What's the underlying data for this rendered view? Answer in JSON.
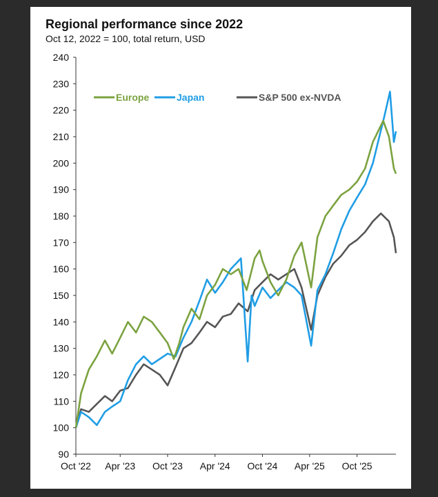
{
  "title": "Regional performance since 2022",
  "subtitle": "Oct 12, 2022 = 100, total return, USD",
  "chart_data": {
    "type": "line",
    "title": "Regional performance since 2022",
    "subtitle": "Oct 12, 2022 = 100, total return, USD",
    "xlabel": "",
    "ylabel": "",
    "xlim": [
      "2022-10-12",
      "2026-02-28"
    ],
    "ylim": [
      90,
      240
    ],
    "y_ticks": [
      90,
      100,
      110,
      120,
      130,
      140,
      150,
      160,
      170,
      180,
      190,
      200,
      210,
      220,
      230,
      240
    ],
    "x_ticks": [
      {
        "date": "2022-10-12",
        "label": "Oct '22"
      },
      {
        "date": "2023-04-01",
        "label": "Apr '23"
      },
      {
        "date": "2023-10-01",
        "label": "Oct '23"
      },
      {
        "date": "2024-04-01",
        "label": "Apr '24"
      },
      {
        "date": "2024-10-01",
        "label": "Oct '24"
      },
      {
        "date": "2025-04-01",
        "label": "Apr '25"
      },
      {
        "date": "2025-10-01",
        "label": "Oct '25"
      }
    ],
    "grid": false,
    "legend": "top-left",
    "series": [
      {
        "name": "Europe",
        "color": "#7ba23f",
        "points": [
          [
            "2022-10-12",
            100
          ],
          [
            "2022-11-01",
            113
          ],
          [
            "2022-12-01",
            122
          ],
          [
            "2023-01-01",
            127
          ],
          [
            "2023-02-01",
            133
          ],
          [
            "2023-03-01",
            128
          ],
          [
            "2023-04-01",
            134
          ],
          [
            "2023-05-01",
            140
          ],
          [
            "2023-06-01",
            136
          ],
          [
            "2023-07-01",
            142
          ],
          [
            "2023-08-01",
            140
          ],
          [
            "2023-09-01",
            136
          ],
          [
            "2023-10-01",
            132
          ],
          [
            "2023-10-25",
            126
          ],
          [
            "2023-11-15",
            132
          ],
          [
            "2023-12-01",
            138
          ],
          [
            "2024-01-01",
            145
          ],
          [
            "2024-02-01",
            141
          ],
          [
            "2024-03-01",
            150
          ],
          [
            "2024-04-01",
            154
          ],
          [
            "2024-05-01",
            160
          ],
          [
            "2024-06-01",
            158
          ],
          [
            "2024-07-01",
            160
          ],
          [
            "2024-08-01",
            152
          ],
          [
            "2024-09-01",
            164
          ],
          [
            "2024-09-20",
            167
          ],
          [
            "2024-10-01",
            163
          ],
          [
            "2024-11-01",
            155
          ],
          [
            "2024-12-01",
            150
          ],
          [
            "2025-01-01",
            156
          ],
          [
            "2025-02-01",
            165
          ],
          [
            "2025-03-01",
            170
          ],
          [
            "2025-04-07",
            153
          ],
          [
            "2025-05-01",
            172
          ],
          [
            "2025-06-01",
            180
          ],
          [
            "2025-07-01",
            184
          ],
          [
            "2025-08-01",
            188
          ],
          [
            "2025-09-01",
            190
          ],
          [
            "2025-10-01",
            193
          ],
          [
            "2025-11-01",
            198
          ],
          [
            "2025-12-01",
            208
          ],
          [
            "2026-01-10",
            216
          ],
          [
            "2026-02-01",
            210
          ],
          [
            "2026-02-20",
            198
          ],
          [
            "2026-02-28",
            196
          ]
        ]
      },
      {
        "name": "Japan",
        "color": "#1f9de5",
        "points": [
          [
            "2022-10-12",
            100
          ],
          [
            "2022-11-01",
            106
          ],
          [
            "2022-12-01",
            104
          ],
          [
            "2023-01-01",
            101
          ],
          [
            "2023-02-01",
            106
          ],
          [
            "2023-03-01",
            108
          ],
          [
            "2023-04-01",
            110
          ],
          [
            "2023-05-01",
            118
          ],
          [
            "2023-06-01",
            124
          ],
          [
            "2023-07-01",
            127
          ],
          [
            "2023-08-01",
            124
          ],
          [
            "2023-09-01",
            126
          ],
          [
            "2023-10-01",
            128
          ],
          [
            "2023-11-01",
            127
          ],
          [
            "2023-12-01",
            134
          ],
          [
            "2024-01-01",
            140
          ],
          [
            "2024-02-01",
            148
          ],
          [
            "2024-03-01",
            156
          ],
          [
            "2024-04-01",
            151
          ],
          [
            "2024-05-01",
            155
          ],
          [
            "2024-06-01",
            160
          ],
          [
            "2024-07-10",
            164
          ],
          [
            "2024-08-05",
            125
          ],
          [
            "2024-08-20",
            150
          ],
          [
            "2024-09-01",
            146
          ],
          [
            "2024-10-01",
            153
          ],
          [
            "2024-11-01",
            149
          ],
          [
            "2024-12-01",
            152
          ],
          [
            "2025-01-01",
            155
          ],
          [
            "2025-02-01",
            153
          ],
          [
            "2025-03-01",
            150
          ],
          [
            "2025-04-07",
            131
          ],
          [
            "2025-05-01",
            152
          ],
          [
            "2025-06-01",
            158
          ],
          [
            "2025-07-01",
            166
          ],
          [
            "2025-08-01",
            175
          ],
          [
            "2025-09-01",
            182
          ],
          [
            "2025-10-01",
            187
          ],
          [
            "2025-11-01",
            192
          ],
          [
            "2025-12-01",
            200
          ],
          [
            "2026-01-15",
            218
          ],
          [
            "2026-02-05",
            227
          ],
          [
            "2026-02-20",
            208
          ],
          [
            "2026-02-28",
            212
          ]
        ]
      },
      {
        "name": "S&P 500 ex-NVDA",
        "color": "#555555",
        "points": [
          [
            "2022-10-12",
            100
          ],
          [
            "2022-11-01",
            107
          ],
          [
            "2022-12-01",
            106
          ],
          [
            "2023-01-01",
            109
          ],
          [
            "2023-02-01",
            112
          ],
          [
            "2023-03-01",
            110
          ],
          [
            "2023-04-01",
            114
          ],
          [
            "2023-05-01",
            115
          ],
          [
            "2023-06-01",
            120
          ],
          [
            "2023-07-01",
            124
          ],
          [
            "2023-08-01",
            122
          ],
          [
            "2023-09-01",
            120
          ],
          [
            "2023-10-01",
            116
          ],
          [
            "2023-11-01",
            123
          ],
          [
            "2023-12-01",
            130
          ],
          [
            "2024-01-01",
            132
          ],
          [
            "2024-02-01",
            136
          ],
          [
            "2024-03-01",
            140
          ],
          [
            "2024-04-01",
            138
          ],
          [
            "2024-05-01",
            142
          ],
          [
            "2024-06-01",
            143
          ],
          [
            "2024-07-01",
            147
          ],
          [
            "2024-08-05",
            144
          ],
          [
            "2024-09-01",
            152
          ],
          [
            "2024-10-01",
            155
          ],
          [
            "2024-11-01",
            158
          ],
          [
            "2024-12-01",
            156
          ],
          [
            "2025-01-01",
            158
          ],
          [
            "2025-02-01",
            160
          ],
          [
            "2025-03-01",
            153
          ],
          [
            "2025-04-07",
            137
          ],
          [
            "2025-05-01",
            150
          ],
          [
            "2025-06-01",
            157
          ],
          [
            "2025-07-01",
            162
          ],
          [
            "2025-08-01",
            165
          ],
          [
            "2025-09-01",
            169
          ],
          [
            "2025-10-01",
            171
          ],
          [
            "2025-11-01",
            174
          ],
          [
            "2025-12-01",
            178
          ],
          [
            "2026-01-01",
            181
          ],
          [
            "2026-02-01",
            178
          ],
          [
            "2026-02-20",
            172
          ],
          [
            "2026-02-28",
            166
          ]
        ]
      }
    ]
  }
}
